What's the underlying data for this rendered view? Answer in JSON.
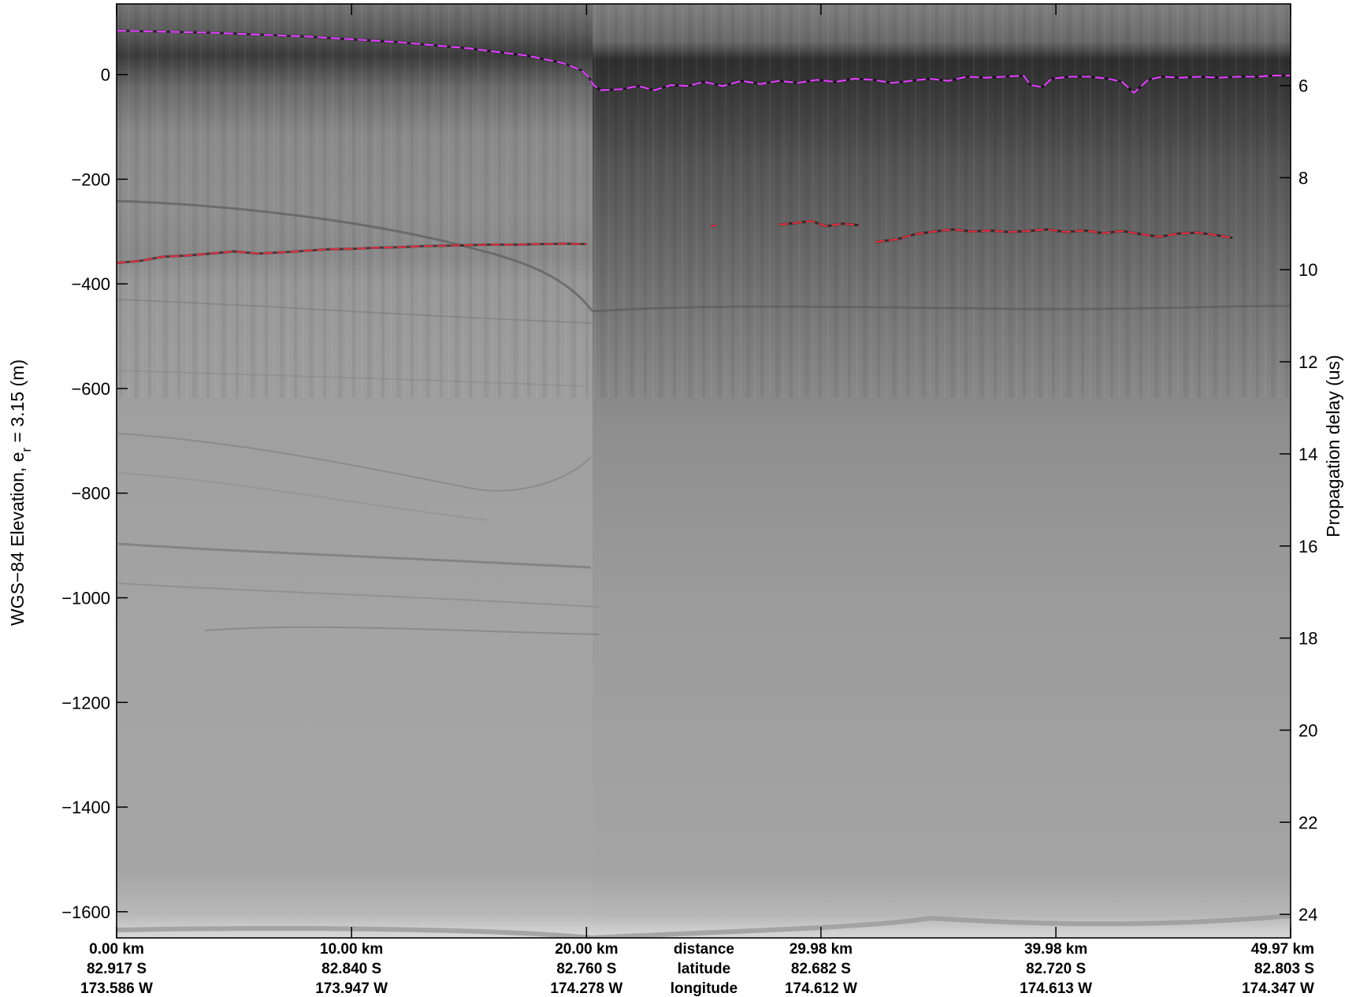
{
  "chart_data": {
    "type": "heatmap",
    "colormap": "grayscale",
    "title": "",
    "ylabel_left": {
      "main": "WGS−84 Elevation, e",
      "sub": "r",
      "rest": " = 3.15 (m)"
    },
    "ylabel_right": "Propagation delay (us)",
    "ylim_left": [
      -1650,
      135
    ],
    "yticks_left": [
      {
        "value": 0,
        "label": "0"
      },
      {
        "value": -200,
        "label": "−200"
      },
      {
        "value": -400,
        "label": "−400"
      },
      {
        "value": -600,
        "label": "−600"
      },
      {
        "value": -800,
        "label": "−800"
      },
      {
        "value": -1000,
        "label": "−1000"
      },
      {
        "value": -1200,
        "label": "−1200"
      },
      {
        "value": -1400,
        "label": "−1400"
      },
      {
        "value": -1600,
        "label": "−1600"
      }
    ],
    "yticks_right": [
      {
        "elev": -21,
        "label": "6"
      },
      {
        "elev": -197,
        "label": "8"
      },
      {
        "elev": -373,
        "label": "10"
      },
      {
        "elev": -549,
        "label": "12"
      },
      {
        "elev": -725,
        "label": "14"
      },
      {
        "elev": -901,
        "label": "16"
      },
      {
        "elev": -1077,
        "label": "18"
      },
      {
        "elev": -1253,
        "label": "20"
      },
      {
        "elev": -1429,
        "label": "22"
      },
      {
        "elev": -1605,
        "label": "24"
      }
    ],
    "xlim_km": [
      0,
      49.97
    ],
    "xticks": [
      {
        "km": 0,
        "distance": "0.00 km",
        "latitude": "82.917 S",
        "longitude": "173.586 W",
        "anchor": "middle"
      },
      {
        "km": 10.0,
        "distance": "10.00 km",
        "latitude": "82.840 S",
        "longitude": "173.947 W",
        "anchor": "middle"
      },
      {
        "km": 20.0,
        "distance": "20.00 km",
        "latitude": "82.760 S",
        "longitude": "174.278 W",
        "anchor": "middle"
      },
      {
        "km": 29.98,
        "distance": "29.98 km",
        "latitude": "82.682 S",
        "longitude": "174.612 W",
        "anchor": "middle"
      },
      {
        "km": 39.98,
        "distance": "39.98 km",
        "latitude": "82.720 S",
        "longitude": "174.613 W",
        "anchor": "middle"
      },
      {
        "km": 49.97,
        "distance": "49.97 km",
        "latitude": "82.803 S",
        "longitude": "174.347 W",
        "anchor": "end"
      }
    ],
    "x_info_header": {
      "km": 25.0,
      "distance": "distance",
      "latitude": "latitude",
      "longitude": "longitude"
    },
    "series": [
      {
        "id": "surface-pick",
        "color": "#e040ff",
        "points": [
          [
            0,
            84
          ],
          [
            4,
            80
          ],
          [
            8,
            73
          ],
          [
            12,
            62
          ],
          [
            15,
            50
          ],
          [
            17.5,
            36
          ],
          [
            19,
            22
          ],
          [
            19.8,
            8
          ],
          [
            20.1,
            -5
          ],
          [
            20.3,
            -20
          ],
          [
            20.6,
            -30
          ],
          [
            21.5,
            -28
          ],
          [
            22.2,
            -22
          ],
          [
            22.9,
            -30
          ],
          [
            23.6,
            -20
          ],
          [
            24.3,
            -22
          ],
          [
            25,
            -14
          ],
          [
            25.8,
            -22
          ],
          [
            26.6,
            -12
          ],
          [
            27.4,
            -18
          ],
          [
            28.2,
            -12
          ],
          [
            29,
            -16
          ],
          [
            29.8,
            -10
          ],
          [
            30.6,
            -14
          ],
          [
            31.4,
            -8
          ],
          [
            32.2,
            -10
          ],
          [
            33,
            -16
          ],
          [
            33.8,
            -12
          ],
          [
            34.6,
            -8
          ],
          [
            35.4,
            -12
          ],
          [
            36.2,
            -4
          ],
          [
            37,
            -6
          ],
          [
            37.8,
            -4
          ],
          [
            38.6,
            -2
          ],
          [
            38.9,
            -20
          ],
          [
            39.4,
            -24
          ],
          [
            39.8,
            -8
          ],
          [
            40.6,
            -4
          ],
          [
            41.4,
            -4
          ],
          [
            42.2,
            -8
          ],
          [
            42.8,
            -14
          ],
          [
            43.3,
            -35
          ],
          [
            43.9,
            -10
          ],
          [
            44.5,
            -4
          ],
          [
            45.3,
            -6
          ],
          [
            46.1,
            -4
          ],
          [
            46.9,
            -6
          ],
          [
            47.7,
            -4
          ],
          [
            48.5,
            -4
          ],
          [
            49.3,
            -2
          ],
          [
            49.97,
            -2
          ]
        ]
      },
      {
        "id": "bottom-pick-west",
        "color": "#e03040",
        "points": [
          [
            0,
            -360
          ],
          [
            1,
            -356
          ],
          [
            2,
            -348
          ],
          [
            3,
            -346
          ],
          [
            4,
            -342
          ],
          [
            5,
            -338
          ],
          [
            6,
            -342
          ],
          [
            7,
            -340
          ],
          [
            8,
            -337
          ],
          [
            9,
            -334
          ],
          [
            10,
            -333
          ],
          [
            11,
            -331
          ],
          [
            12,
            -330
          ],
          [
            13,
            -328
          ],
          [
            14,
            -327
          ],
          [
            15,
            -326
          ],
          [
            16,
            -325
          ],
          [
            17,
            -325
          ],
          [
            18,
            -324
          ],
          [
            19,
            -323
          ],
          [
            20,
            -324
          ]
        ]
      },
      {
        "id": "bottom-pick-east-1",
        "color": "#e03040",
        "points": [
          [
            25.3,
            -290
          ],
          [
            25.5,
            -288
          ]
        ]
      },
      {
        "id": "bottom-pick-east-2",
        "color": "#e03040",
        "points": [
          [
            28.2,
            -287
          ],
          [
            29,
            -283
          ],
          [
            29.6,
            -280
          ],
          [
            30.2,
            -290
          ],
          [
            30.9,
            -285
          ],
          [
            31.6,
            -288
          ]
        ]
      },
      {
        "id": "bottom-pick-east-3",
        "color": "#e03040",
        "points": [
          [
            32.3,
            -320
          ],
          [
            33.2,
            -315
          ],
          [
            34,
            -305
          ],
          [
            34.8,
            -300
          ],
          [
            35.6,
            -296
          ],
          [
            36.4,
            -300
          ],
          [
            37.2,
            -298
          ],
          [
            38,
            -301
          ],
          [
            38.8,
            -299
          ],
          [
            39.6,
            -296
          ],
          [
            40.4,
            -301
          ],
          [
            41.2,
            -298
          ],
          [
            42,
            -303
          ],
          [
            42.8,
            -299
          ],
          [
            43.6,
            -305
          ],
          [
            44.4,
            -310
          ],
          [
            45.2,
            -304
          ],
          [
            46,
            -302
          ],
          [
            46.8,
            -307
          ],
          [
            47.5,
            -312
          ]
        ]
      }
    ]
  }
}
